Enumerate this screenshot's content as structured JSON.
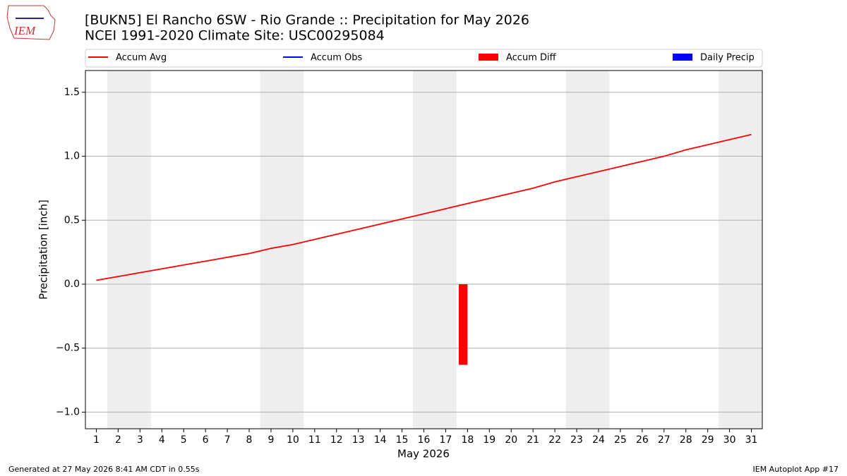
{
  "logo_text": "IEM",
  "footer": {
    "left": "Generated at 27 May 2026 8:41 AM CDT in 0.55s",
    "right": "IEM Autoplot App #17"
  },
  "chart_data": {
    "type": "combo",
    "title": "[BUKN5] El Rancho 6SW - Rio Grande :: Precipitation for May 2026",
    "subtitle": "NCEI 1991-2020 Climate Site: USC00295084",
    "x_label": "May 2026",
    "y_label": "Precipitation [inch]",
    "x": [
      1,
      2,
      3,
      4,
      5,
      6,
      7,
      8,
      9,
      10,
      11,
      12,
      13,
      14,
      15,
      16,
      17,
      18,
      19,
      20,
      21,
      22,
      23,
      24,
      25,
      26,
      27,
      28,
      29,
      30,
      31
    ],
    "xlim": [
      0.5,
      31.5
    ],
    "xticks": [
      1,
      2,
      3,
      4,
      5,
      6,
      7,
      8,
      9,
      10,
      11,
      12,
      13,
      14,
      15,
      16,
      17,
      18,
      19,
      20,
      21,
      22,
      23,
      24,
      25,
      26,
      27,
      28,
      29,
      30,
      31
    ],
    "ylim": [
      -1.13,
      1.67
    ],
    "yticks": [
      {
        "value": -1,
        "label": "−1.0"
      },
      {
        "value": -0.5,
        "label": "−0.5"
      },
      {
        "value": 0,
        "label": "0.0"
      },
      0.5,
      {
        "value": 1,
        "label": "1.0"
      },
      1.5
    ],
    "grid": true,
    "shaded_ranges": [
      [
        1.5,
        3.5
      ],
      [
        8.5,
        10.5
      ],
      [
        15.5,
        17.5
      ],
      [
        22.5,
        24.5
      ],
      [
        29.5,
        31.5
      ]
    ],
    "series": [
      {
        "name": "Accum Avg",
        "kind": "line",
        "color": "#ff0000",
        "values": [
          0.03,
          0.06,
          0.09,
          0.12,
          0.15,
          0.18,
          0.21,
          0.24,
          0.28,
          0.31,
          0.35,
          0.39,
          0.43,
          0.47,
          0.51,
          0.55,
          0.59,
          0.63,
          0.67,
          0.71,
          0.75,
          0.8,
          0.84,
          0.88,
          0.92,
          0.96,
          1.0,
          1.05,
          1.09,
          1.13,
          1.17
        ]
      },
      {
        "name": "Accum Obs",
        "kind": "line",
        "color": "#0000ff",
        "values": [
          null,
          null,
          null,
          null,
          null,
          null,
          null,
          null,
          null,
          null,
          null,
          null,
          null,
          null,
          null,
          null,
          null,
          0,
          null,
          null,
          null,
          null,
          null,
          null,
          null,
          null,
          null,
          null,
          null,
          null,
          null
        ]
      },
      {
        "name": "Accum Diff",
        "kind": "bar",
        "color": "#ff0000",
        "values": [
          null,
          null,
          null,
          null,
          null,
          null,
          null,
          null,
          null,
          null,
          null,
          null,
          null,
          null,
          null,
          null,
          null,
          -0.63,
          null,
          null,
          null,
          null,
          null,
          null,
          null,
          null,
          null,
          null,
          null,
          null,
          null
        ]
      },
      {
        "name": "Daily Precip",
        "kind": "bar",
        "color": "#0000ff",
        "values": [
          null,
          null,
          null,
          null,
          null,
          null,
          null,
          null,
          null,
          null,
          null,
          null,
          null,
          null,
          null,
          null,
          null,
          null,
          null,
          null,
          null,
          null,
          null,
          null,
          null,
          null,
          null,
          null,
          null,
          null,
          null
        ]
      }
    ]
  }
}
